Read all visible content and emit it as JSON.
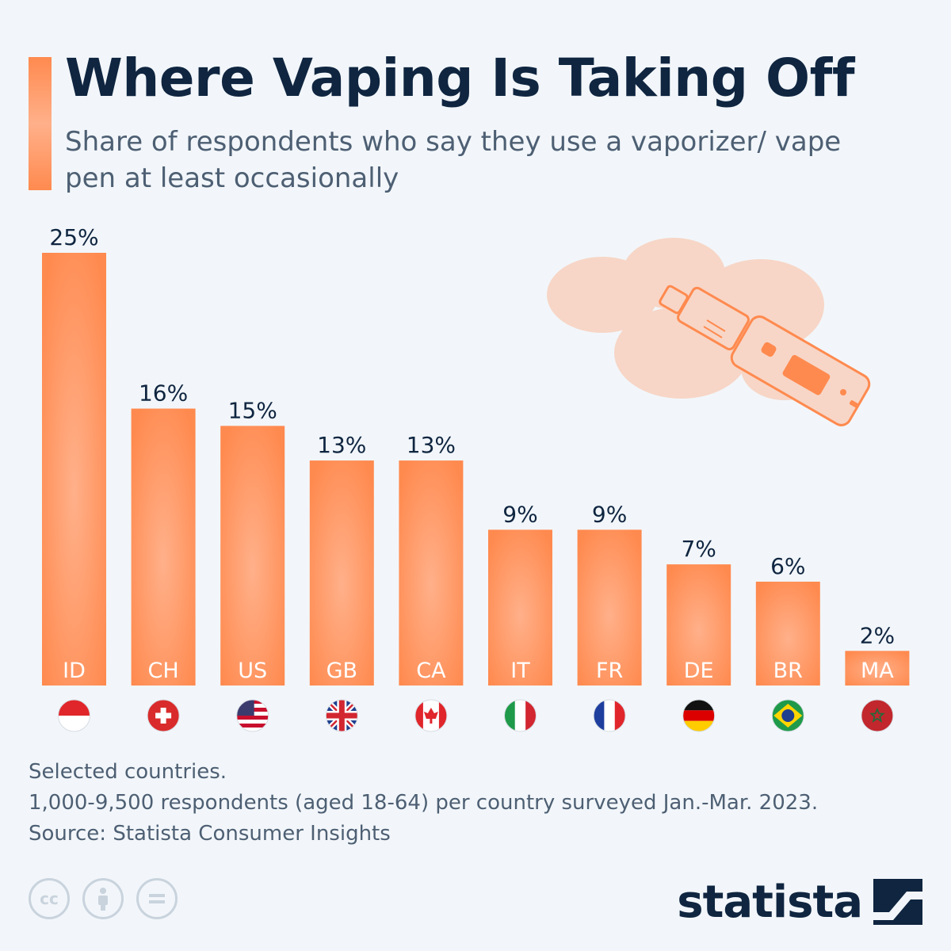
{
  "header": {
    "title": "Where Vaping Is Taking Off",
    "subtitle": "Share of respondents who say they use a vaporizer/ vape pen at least occasionally"
  },
  "chart_data": {
    "type": "bar",
    "categories": [
      "ID",
      "CH",
      "US",
      "GB",
      "CA",
      "IT",
      "FR",
      "DE",
      "BR",
      "MA"
    ],
    "values": [
      25,
      16,
      15,
      13,
      13,
      9,
      9,
      7,
      6,
      2
    ],
    "value_labels": [
      "25%",
      "16%",
      "15%",
      "13%",
      "13%",
      "9%",
      "9%",
      "7%",
      "6%",
      "2%"
    ],
    "flags": [
      "indonesia-flag",
      "switzerland-flag",
      "usa-flag",
      "uk-flag",
      "canada-flag",
      "italy-flag",
      "france-flag",
      "germany-flag",
      "brazil-flag",
      "morocco-flag"
    ],
    "ylim": [
      0,
      25
    ],
    "grid": false,
    "bar_color": "#ff8a4f",
    "bar_highlight": "#ffb08a"
  },
  "footer": {
    "note1": "Selected countries.",
    "note2": "1,000-9,500 respondents (aged 18-64) per country surveyed Jan.-Mar. 2023.",
    "source": "Source: Statista Consumer Insights"
  },
  "brand": {
    "name": "statista"
  },
  "license_icons": [
    "cc-icon",
    "attribution-icon",
    "no-derivatives-icon"
  ]
}
